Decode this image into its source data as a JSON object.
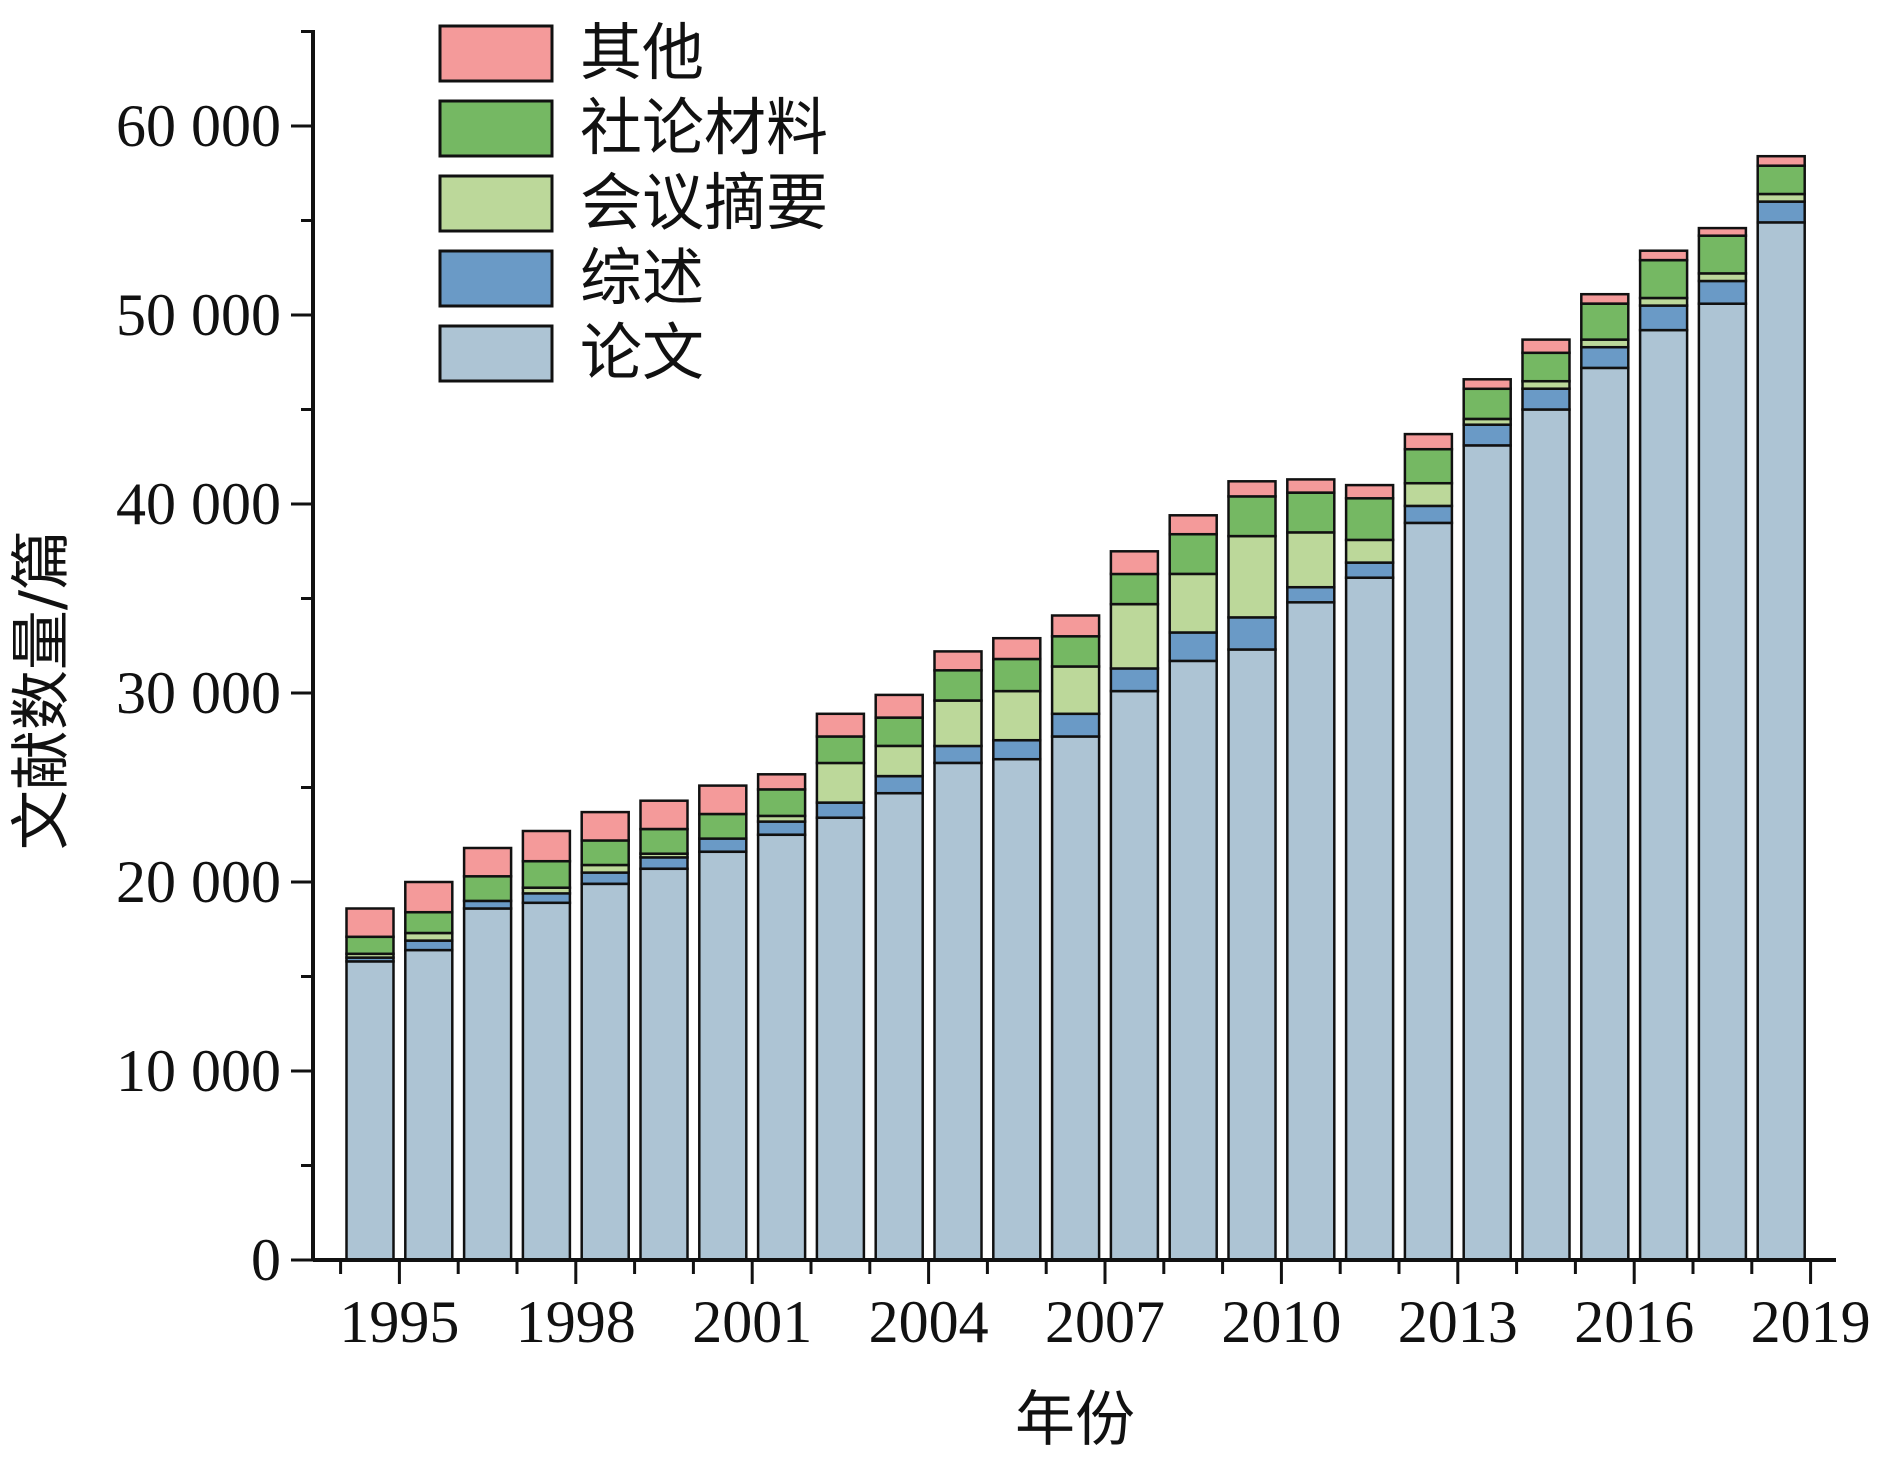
{
  "chart_data": {
    "type": "bar",
    "stacked": true,
    "xlabel": "年份",
    "ylabel": "文献数量/篇",
    "ylim": [
      0,
      65000
    ],
    "yticks": [
      0,
      10000,
      20000,
      30000,
      40000,
      50000,
      60000
    ],
    "ytick_labels": [
      "0",
      "10 000",
      "20 000",
      "30 000",
      "40 000",
      "50 000",
      "60 000"
    ],
    "xtick_labels": [
      "1995",
      "1998",
      "2001",
      "2004",
      "2007",
      "2010",
      "2013",
      "2016",
      "2019"
    ],
    "categories": [
      "1994",
      "1995",
      "1996",
      "1997",
      "1998",
      "1999",
      "2000",
      "2001",
      "2002",
      "2003",
      "2004",
      "2005",
      "2006",
      "2007",
      "2008",
      "2009",
      "2010",
      "2011",
      "2012",
      "2013",
      "2014",
      "2015",
      "2016",
      "2017",
      "2018"
    ],
    "legend_position": "top-left",
    "series": [
      {
        "name": "论文",
        "color": "#adc4d4",
        "values": [
          15800,
          16400,
          18600,
          18900,
          19900,
          20700,
          21600,
          22500,
          23400,
          24700,
          26300,
          26500,
          27700,
          30100,
          31700,
          32300,
          34800,
          36100,
          39000,
          43100,
          45000,
          47200,
          49200,
          50600,
          54900
        ]
      },
      {
        "name": "综述",
        "color": "#6a9ac6",
        "values": [
          200,
          500,
          400,
          500,
          600,
          600,
          700,
          700,
          800,
          900,
          900,
          1000,
          1200,
          1200,
          1500,
          1700,
          800,
          800,
          900,
          1100,
          1100,
          1100,
          1300,
          1200,
          1100
        ]
      },
      {
        "name": "会议摘要",
        "color": "#bcd89a",
        "values": [
          200,
          400,
          0,
          300,
          400,
          200,
          0,
          300,
          2100,
          1600,
          2400,
          2600,
          2500,
          3400,
          3100,
          4300,
          2900,
          1200,
          1200,
          300,
          400,
          400,
          400,
          400,
          400
        ]
      },
      {
        "name": "社论材料",
        "color": "#75b863",
        "values": [
          900,
          1100,
          1300,
          1400,
          1300,
          1300,
          1300,
          1400,
          1400,
          1500,
          1600,
          1700,
          1600,
          1600,
          2100,
          2100,
          2100,
          2200,
          1800,
          1600,
          1500,
          1900,
          2000,
          2000,
          1500
        ]
      },
      {
        "name": "其他",
        "color": "#f49a9a",
        "values": [
          1500,
          1600,
          1500,
          1600,
          1500,
          1500,
          1500,
          800,
          1200,
          1200,
          1000,
          1100,
          1100,
          1200,
          1000,
          800,
          700,
          700,
          800,
          500,
          700,
          500,
          500,
          400,
          500
        ]
      }
    ],
    "legend_order": [
      "其他",
      "社论材料",
      "会议摘要",
      "综述",
      "论文"
    ]
  }
}
